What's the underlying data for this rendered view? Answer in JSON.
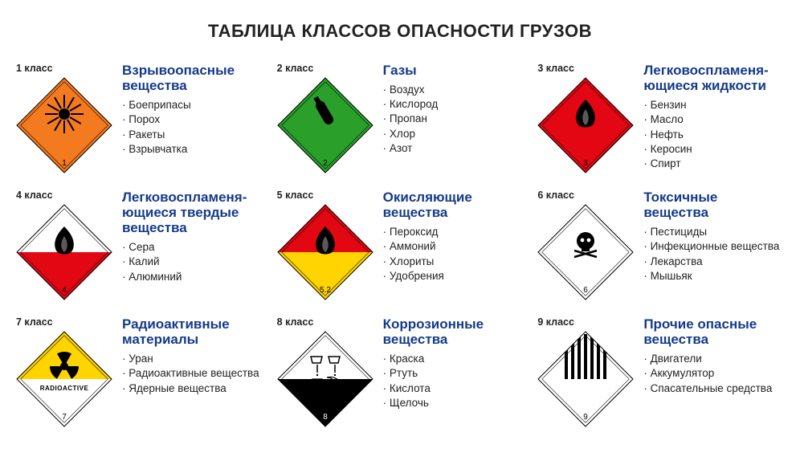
{
  "title": "ТАБЛИЦА КЛАССОВ ОПАСНОСТИ ГРУЗОВ",
  "colors": {
    "orange": "#f47a20",
    "green": "#2aa02a",
    "red": "#e30613",
    "white": "#ffffff",
    "yellow": "#ffd400",
    "black": "#000000",
    "titleBlue": "#143a8a",
    "bg": "#ffffff"
  },
  "diamond": {
    "size": 120,
    "stroke": "#000000",
    "strokeWidth": 1
  },
  "layout": {
    "cols": 3,
    "rows": 3,
    "cardGap": 20
  },
  "classes": [
    {
      "key": "c1",
      "klass": "1 класс",
      "number": "1",
      "title": "Взрывоопасные вещества",
      "items": [
        "Боеприпасы",
        "Порох",
        "Ракеты",
        "Взрывчатка"
      ],
      "placard": {
        "type": "solid",
        "fill": "#f47a20",
        "symbol": "explosion",
        "symbolColor": "#000000",
        "numberColor": "#000000"
      }
    },
    {
      "key": "c2",
      "klass": "2 класс",
      "number": "2",
      "title": "Газы",
      "items": [
        "Воздух",
        "Кислород",
        "Пропан",
        "Хлор",
        "Азот"
      ],
      "placard": {
        "type": "solid",
        "fill": "#2aa02a",
        "symbol": "cylinder",
        "symbolColor": "#000000",
        "numberColor": "#000000"
      }
    },
    {
      "key": "c3",
      "klass": "3 класс",
      "number": "3",
      "title": "Легковоспламеня-ющиеся жидкости",
      "items": [
        "Бензин",
        "Масло",
        "Нефть",
        "Керосин",
        "Спирт"
      ],
      "placard": {
        "type": "solid",
        "fill": "#e30613",
        "symbol": "flame",
        "symbolColor": "#000000",
        "numberColor": "#000000"
      }
    },
    {
      "key": "c4",
      "klass": "4 класс",
      "number": "4",
      "title": "Легковоспламеня-ющиеся твердые вещества",
      "items": [
        "Сера",
        "Калий",
        "Алюминий"
      ],
      "placard": {
        "type": "splitH",
        "top": "#ffffff",
        "bottom": "#e30613",
        "symbol": "flame",
        "symbolColor": "#000000",
        "numberColor": "#000000"
      }
    },
    {
      "key": "c5",
      "klass": "5 класс",
      "number": "5.2",
      "title": "Окисляющие вещества",
      "items": [
        "Пероксид",
        "Аммоний",
        "Хлориты",
        "Удобрения"
      ],
      "placard": {
        "type": "splitH",
        "top": "#e30613",
        "bottom": "#ffd400",
        "symbol": "flame",
        "symbolColor": "#000000",
        "numberColor": "#000000"
      }
    },
    {
      "key": "c6",
      "klass": "6 класс",
      "number": "6",
      "title": "Токсичные вещества",
      "items": [
        "Пестициды",
        "Инфекционные вещества",
        "Лекарства",
        "Мышьяк"
      ],
      "placard": {
        "type": "solid",
        "fill": "#ffffff",
        "symbol": "skull",
        "symbolColor": "#000000",
        "numberColor": "#000000"
      }
    },
    {
      "key": "c7",
      "klass": "7 класс",
      "number": "7",
      "title": "Радиоактивные материалы",
      "items": [
        "Уран",
        "Радиоактивные вещества",
        "Ядерные вещества"
      ],
      "placard": {
        "type": "splitH",
        "top": "#ffd400",
        "bottom": "#ffffff",
        "symbol": "radiation",
        "symbolColor": "#000000",
        "text": "RADIOACTIVE",
        "numberColor": "#000000"
      }
    },
    {
      "key": "c8",
      "klass": "8 класс",
      "number": "8",
      "title": "Коррозионные вещества",
      "items": [
        "Краска",
        "Ртуть",
        "Кислота",
        "Щелочь"
      ],
      "placard": {
        "type": "splitH",
        "top": "#ffffff",
        "bottom": "#000000",
        "symbol": "corrosive",
        "symbolColor": "#000000",
        "numberColor": "#ffffff"
      }
    },
    {
      "key": "c9",
      "klass": "9 класс",
      "number": "9",
      "title": "Прочие опасные вещества",
      "items": [
        "Двигатели",
        "Аккумулятор",
        "Спасательные средства"
      ],
      "placard": {
        "type": "solid",
        "fill": "#ffffff",
        "symbol": "stripes",
        "symbolColor": "#000000",
        "numberColor": "#000000"
      }
    }
  ]
}
